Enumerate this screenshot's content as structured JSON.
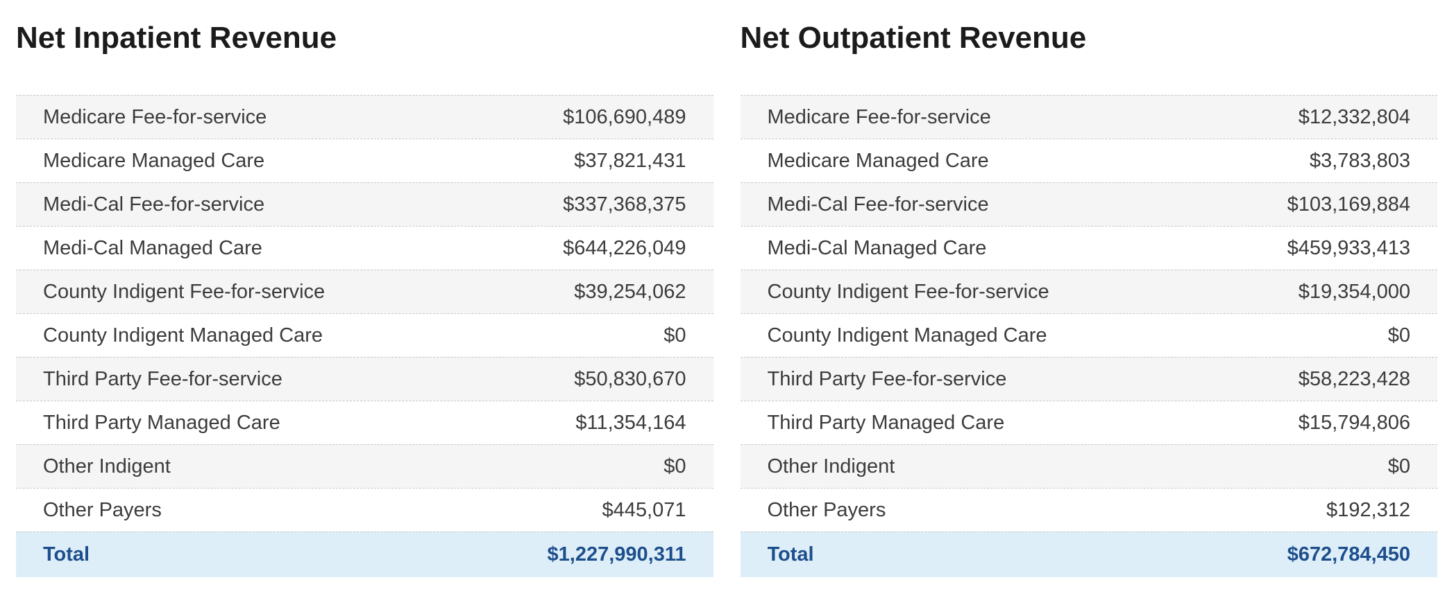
{
  "colors": {
    "stripe_row_bg": "#f5f5f5",
    "total_row_bg": "#ddeef9",
    "total_text": "#1d4e8c",
    "body_text": "#3b3b3b",
    "title_text": "#1b1b1b",
    "row_divider": "#c6c6c6"
  },
  "tables": [
    {
      "title": "Net Inpatient Revenue",
      "rows": [
        {
          "label": "Medicare Fee-for-service",
          "value": "$106,690,489"
        },
        {
          "label": "Medicare Managed Care",
          "value": "$37,821,431"
        },
        {
          "label": "Medi-Cal Fee-for-service",
          "value": "$337,368,375"
        },
        {
          "label": "Medi-Cal Managed Care",
          "value": "$644,226,049"
        },
        {
          "label": "County Indigent Fee-for-service",
          "value": "$39,254,062"
        },
        {
          "label": "County Indigent Managed Care",
          "value": "$0"
        },
        {
          "label": "Third Party Fee-for-service",
          "value": "$50,830,670"
        },
        {
          "label": "Third Party Managed Care",
          "value": "$11,354,164"
        },
        {
          "label": "Other Indigent",
          "value": "$0"
        },
        {
          "label": "Other Payers",
          "value": "$445,071"
        }
      ],
      "total": {
        "label": "Total",
        "value": "$1,227,990,311"
      }
    },
    {
      "title": "Net Outpatient Revenue",
      "rows": [
        {
          "label": "Medicare Fee-for-service",
          "value": "$12,332,804"
        },
        {
          "label": "Medicare Managed Care",
          "value": "$3,783,803"
        },
        {
          "label": "Medi-Cal Fee-for-service",
          "value": "$103,169,884"
        },
        {
          "label": "Medi-Cal Managed Care",
          "value": "$459,933,413"
        },
        {
          "label": "County Indigent Fee-for-service",
          "value": "$19,354,000"
        },
        {
          "label": "County Indigent Managed Care",
          "value": "$0"
        },
        {
          "label": "Third Party Fee-for-service",
          "value": "$58,223,428"
        },
        {
          "label": "Third Party Managed Care",
          "value": "$15,794,806"
        },
        {
          "label": "Other Indigent",
          "value": "$0"
        },
        {
          "label": "Other Payers",
          "value": "$192,312"
        }
      ],
      "total": {
        "label": "Total",
        "value": "$672,784,450"
      }
    }
  ]
}
